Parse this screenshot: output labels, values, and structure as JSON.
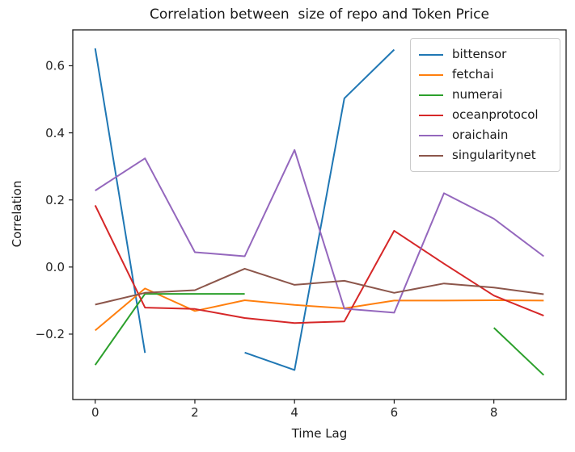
{
  "chart_data": {
    "type": "line",
    "title": "Correlation between  size of repo and Token Price",
    "xlabel": "Time Lag",
    "ylabel": "Correlation",
    "grid": false,
    "legend_position": "upper right",
    "axis_color": "#1a1a1a",
    "tick_label_color": "#262626",
    "xlim": [
      -0.45,
      9.45
    ],
    "ylim": [
      -0.395,
      0.707
    ],
    "xticks": {
      "values": [
        0,
        2,
        4,
        6,
        8
      ],
      "labels": [
        "0",
        "2",
        "4",
        "6",
        "8"
      ]
    },
    "yticks": {
      "values": [
        0.6,
        0.4,
        0.2,
        0.0,
        -0.2
      ],
      "labels": [
        "0.6",
        "0.4",
        "0.2",
        "0.0",
        "−0.2"
      ]
    },
    "x": [
      0,
      1,
      2,
      3,
      4,
      5,
      6,
      7,
      8,
      9
    ],
    "series": [
      {
        "name": "bittensor",
        "color": "#1f77b4",
        "values": [
          0.652,
          -0.256,
          null,
          -0.255,
          -0.307,
          0.503,
          0.648,
          null,
          null,
          null
        ]
      },
      {
        "name": "fetchai",
        "color": "#ff7f0e",
        "values": [
          -0.189,
          -0.064,
          -0.131,
          -0.099,
          -0.113,
          -0.123,
          -0.1,
          -0.1,
          -0.099,
          -0.1
        ]
      },
      {
        "name": "numerai",
        "color": "#2ca02c",
        "values": [
          -0.292,
          -0.08,
          -0.08,
          -0.08,
          null,
          null,
          null,
          null,
          -0.181,
          -0.322
        ]
      },
      {
        "name": "oceanprotocol",
        "color": "#d62728",
        "values": [
          0.184,
          -0.121,
          -0.125,
          -0.152,
          -0.167,
          -0.162,
          0.108,
          0.01,
          -0.085,
          -0.145
        ]
      },
      {
        "name": "oraichain",
        "color": "#9467bd",
        "values": [
          0.228,
          0.324,
          0.044,
          0.032,
          0.349,
          -0.124,
          -0.136,
          0.22,
          0.144,
          0.032
        ]
      },
      {
        "name": "singularitynet",
        "color": "#8c564b",
        "values": [
          -0.112,
          -0.077,
          -0.069,
          -0.005,
          -0.053,
          -0.041,
          -0.077,
          -0.049,
          -0.061,
          -0.081
        ]
      }
    ]
  }
}
